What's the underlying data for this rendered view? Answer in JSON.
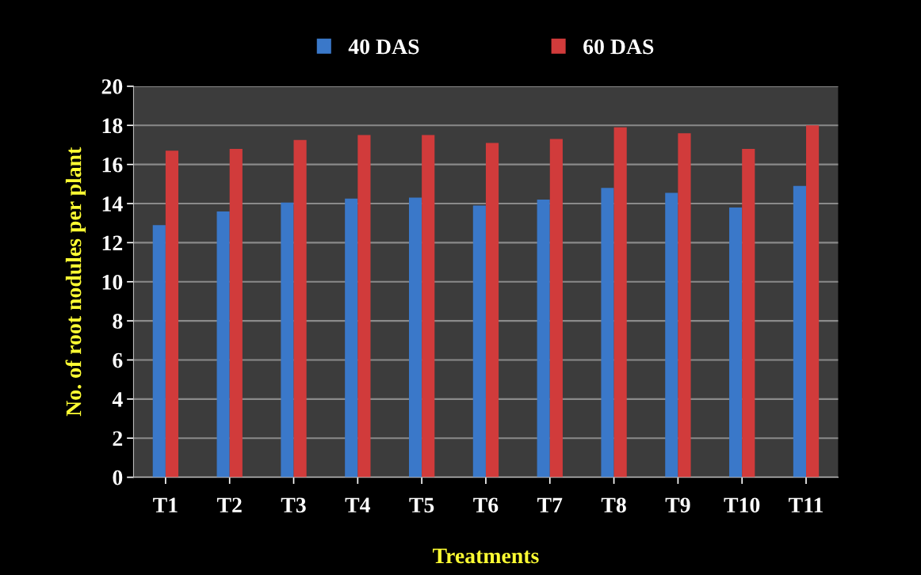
{
  "chart_data": {
    "type": "bar",
    "xlabel": "Treatments",
    "ylabel": "No. of root nodules per plant",
    "categories": [
      "T1",
      "T2",
      "T3",
      "T4",
      "T5",
      "T6",
      "T7",
      "T8",
      "T9",
      "T10",
      "T11"
    ],
    "series": [
      {
        "name": "40 DAS",
        "color": "#3a78c9",
        "values": [
          12.9,
          13.6,
          14.05,
          14.25,
          14.3,
          13.9,
          14.2,
          14.8,
          14.55,
          13.8,
          14.9
        ]
      },
      {
        "name": "60 DAS",
        "color": "#d13b3b",
        "values": [
          16.7,
          16.8,
          17.25,
          17.5,
          17.5,
          17.1,
          17.3,
          17.9,
          17.6,
          16.8,
          18.0
        ]
      }
    ],
    "ylim": [
      0,
      20
    ],
    "yticks": [
      0,
      2,
      4,
      6,
      8,
      10,
      12,
      14,
      16,
      18,
      20
    ],
    "grid": "y",
    "legend": "top"
  }
}
